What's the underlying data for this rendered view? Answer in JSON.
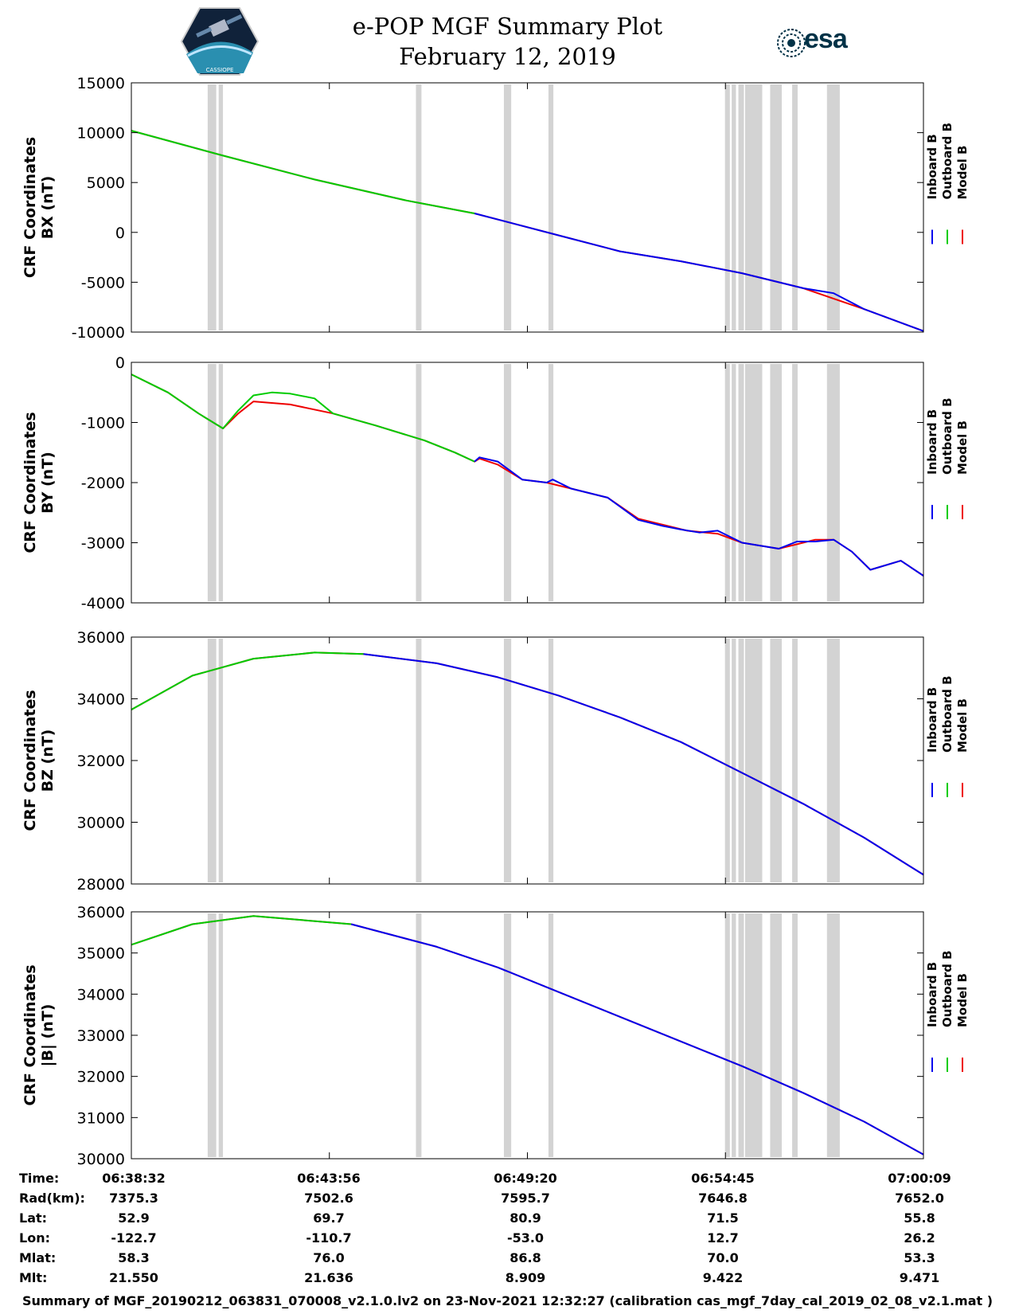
{
  "header": {
    "title_line1": "e-POP MGF Summary Plot",
    "title_line2": "February 12, 2019",
    "logo_left_text": "CASSIOPE",
    "logo_right_text": "esa"
  },
  "colors": {
    "inboard": "#0000ee",
    "outboard": "#00cc00",
    "model": "#ee0000",
    "gap": "#d3d3d3"
  },
  "legend": [
    "Inboard B",
    "Outboard B",
    "Model B"
  ],
  "chart_data": [
    {
      "type": "line",
      "ylabel": [
        "CRF Coordinates",
        "BX (nT)"
      ],
      "ylim": [
        -10000,
        15000
      ],
      "yticks": [
        15000,
        10000,
        5000,
        0,
        -5000,
        -10000
      ],
      "xlim": [
        0,
        1297
      ],
      "outboard_until": 562,
      "series": [
        {
          "name": "Model B",
          "x": [
            0,
            150,
            300,
            450,
            562,
            700,
            800,
            900,
            1000,
            1100,
            1200,
            1297
          ],
          "y": [
            10200,
            7700,
            5300,
            3200,
            1900,
            -300,
            -1900,
            -2900,
            -4100,
            -5600,
            -7700,
            -9900
          ]
        },
        {
          "name": "Outboard B",
          "x": [
            0,
            150,
            300,
            450,
            562
          ],
          "y": [
            10200,
            7700,
            5300,
            3200,
            1900
          ]
        },
        {
          "name": "Inboard B",
          "x": [
            562,
            700,
            800,
            900,
            1000,
            1100,
            1150,
            1200,
            1297
          ],
          "y": [
            1900,
            -300,
            -1900,
            -2900,
            -4100,
            -5600,
            -6100,
            -7700,
            -9900
          ]
        }
      ]
    },
    {
      "type": "line",
      "ylabel": [
        "CRF Coordinates",
        "BY (nT)"
      ],
      "ylim": [
        -4000,
        0
      ],
      "yticks": [
        0,
        -1000,
        -2000,
        -3000,
        -4000
      ],
      "xlim": [
        0,
        1297
      ],
      "outboard_until": 562,
      "series": [
        {
          "name": "Model B",
          "x": [
            0,
            60,
            110,
            150,
            175,
            200,
            260,
            330,
            400,
            480,
            530,
            562,
            570,
            600,
            640,
            680,
            720,
            780,
            830,
            870,
            910,
            960,
            1000,
            1060,
            1120,
            1150,
            1180,
            1210,
            1260,
            1297
          ],
          "y": [
            -200,
            -500,
            -850,
            -1100,
            -850,
            -650,
            -700,
            -850,
            -1050,
            -1300,
            -1500,
            -1650,
            -1600,
            -1700,
            -1950,
            -2000,
            -2100,
            -2250,
            -2600,
            -2700,
            -2800,
            -2850,
            -3000,
            -3100,
            -2950,
            -2950,
            -3150,
            -3450,
            -3300,
            -3550
          ]
        },
        {
          "name": "Outboard B",
          "x": [
            0,
            60,
            110,
            150,
            175,
            200,
            230,
            260,
            300,
            330,
            400,
            480,
            530,
            562
          ],
          "y": [
            -200,
            -500,
            -850,
            -1100,
            -800,
            -550,
            -500,
            -520,
            -600,
            -850,
            -1050,
            -1300,
            -1500,
            -1650
          ]
        },
        {
          "name": "Inboard B",
          "x": [
            562,
            570,
            600,
            640,
            680,
            690,
            720,
            780,
            830,
            870,
            900,
            930,
            960,
            1000,
            1060,
            1090,
            1120,
            1150,
            1180,
            1210,
            1260,
            1297
          ],
          "y": [
            -1650,
            -1580,
            -1650,
            -1950,
            -2000,
            -1950,
            -2100,
            -2250,
            -2620,
            -2720,
            -2780,
            -2830,
            -2800,
            -3000,
            -3100,
            -2980,
            -2980,
            -2950,
            -3150,
            -3450,
            -3300,
            -3550
          ]
        }
      ]
    },
    {
      "type": "line",
      "ylabel": [
        "CRF Coordinates",
        "BZ (nT)"
      ],
      "ylim": [
        28000,
        36000
      ],
      "yticks": [
        36000,
        34000,
        32000,
        30000,
        28000
      ],
      "xlim": [
        0,
        1297
      ],
      "outboard_until": 380,
      "series": [
        {
          "name": "Model B",
          "x": [
            0,
            100,
            200,
            300,
            380,
            500,
            600,
            700,
            800,
            900,
            1000,
            1100,
            1200,
            1297
          ],
          "y": [
            33650,
            34750,
            35300,
            35500,
            35450,
            35150,
            34700,
            34100,
            33400,
            32600,
            31600,
            30600,
            29500,
            28300
          ]
        },
        {
          "name": "Outboard B",
          "x": [
            0,
            100,
            200,
            300,
            380
          ],
          "y": [
            33650,
            34750,
            35300,
            35500,
            35450
          ]
        },
        {
          "name": "Inboard B",
          "x": [
            380,
            500,
            600,
            700,
            800,
            900,
            1000,
            1100,
            1200,
            1297
          ],
          "y": [
            35450,
            35150,
            34700,
            34100,
            33400,
            32600,
            31600,
            30600,
            29500,
            28300
          ]
        }
      ]
    },
    {
      "type": "line",
      "ylabel": [
        "CRF Coordinates",
        "|B| (nT)"
      ],
      "ylim": [
        30000,
        36000
      ],
      "yticks": [
        36000,
        35000,
        34000,
        33000,
        32000,
        31000,
        30000
      ],
      "xlim": [
        0,
        1297
      ],
      "outboard_until": 360,
      "series": [
        {
          "name": "Model B",
          "x": [
            0,
            100,
            200,
            360,
            500,
            600,
            700,
            800,
            900,
            1000,
            1100,
            1200,
            1297
          ],
          "y": [
            35200,
            35700,
            35900,
            35700,
            35150,
            34650,
            34050,
            33450,
            32850,
            32250,
            31600,
            30900,
            30100
          ]
        },
        {
          "name": "Outboard B",
          "x": [
            0,
            100,
            200,
            360
          ],
          "y": [
            35200,
            35700,
            35900,
            35700
          ]
        },
        {
          "name": "Inboard B",
          "x": [
            360,
            500,
            600,
            700,
            800,
            900,
            1000,
            1100,
            1200,
            1297
          ],
          "y": [
            35700,
            35150,
            34650,
            34050,
            33450,
            32850,
            32250,
            31600,
            30900,
            30100
          ]
        }
      ]
    }
  ],
  "gap_bands": [
    [
      125,
      139
    ],
    [
      143,
      150
    ],
    [
      466,
      475
    ],
    [
      610,
      622
    ],
    [
      683,
      691
    ],
    [
      972,
      980
    ],
    [
      983,
      990
    ],
    [
      994,
      1003
    ],
    [
      1005,
      1033
    ],
    [
      1046,
      1065
    ],
    [
      1082,
      1091
    ],
    [
      1139,
      1160
    ]
  ],
  "time_table": {
    "labels": [
      "Time:",
      "Rad(km):",
      "Lat:",
      "Lon:",
      "Mlat:",
      "Mlt:"
    ],
    "columns": [
      [
        "06:38:32",
        "7375.3",
        "52.9",
        "-122.7",
        "58.3",
        "21.550"
      ],
      [
        "06:43:56",
        "7502.6",
        "69.7",
        "-110.7",
        "76.0",
        "21.636"
      ],
      [
        "06:49:20",
        "7595.7",
        "80.9",
        "-53.0",
        "86.8",
        "8.909"
      ],
      [
        "06:54:45",
        "7646.8",
        "71.5",
        "12.7",
        "70.0",
        "9.422"
      ],
      [
        "07:00:09",
        "7652.0",
        "55.8",
        "26.2",
        "53.3",
        "9.471"
      ]
    ]
  },
  "footer": "Summary of MGF_20190212_063831_070008_v2.1.0.lv2 on 23-Nov-2021 12:32:27 (calibration cas_mgf_7day_cal_2019_02_08_v2.1.mat )"
}
